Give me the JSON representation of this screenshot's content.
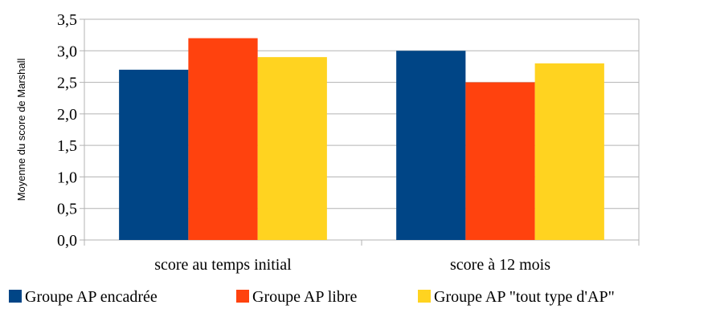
{
  "chart_data": {
    "type": "bar",
    "title": "",
    "xlabel": "",
    "ylabel": "Moyenne du score de Marshall",
    "categories": [
      "score au temps initial",
      "score à 12 mois"
    ],
    "series": [
      {
        "name": "Groupe AP encadrée",
        "values": [
          2.7,
          3.0
        ],
        "color": "#004586"
      },
      {
        "name": "Groupe AP libre",
        "values": [
          3.2,
          2.5
        ],
        "color": "#ff420e"
      },
      {
        "name": "Groupe AP \"tout type d'AP\"",
        "values": [
          2.9,
          2.8
        ],
        "color": "#ffd320"
      }
    ],
    "ylim": [
      0,
      3.5
    ],
    "yticks": [
      "0,0",
      "0,5",
      "1,0",
      "1,5",
      "2,0",
      "2,5",
      "3,0",
      "3,5"
    ],
    "grid": true,
    "legend": "bottom"
  }
}
